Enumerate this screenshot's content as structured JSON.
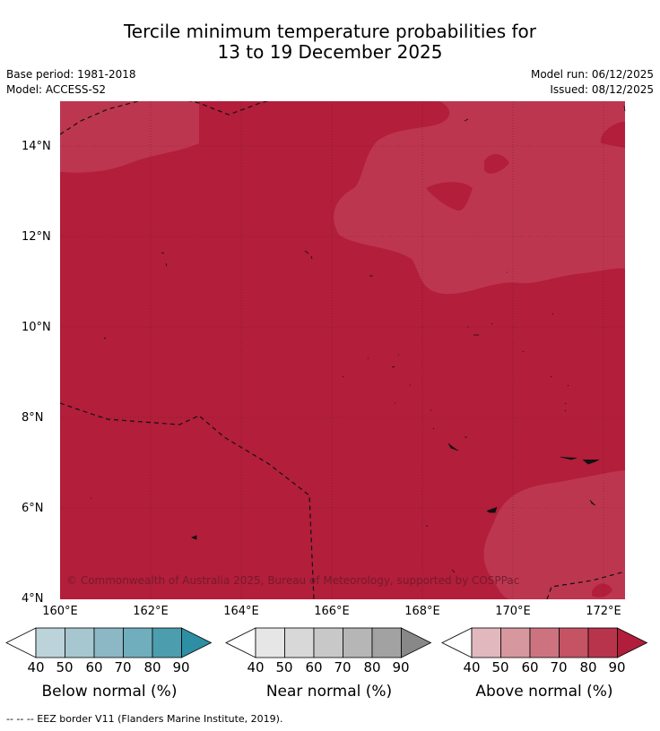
{
  "title": {
    "line1": "Tercile minimum temperature probabilities for",
    "line2": "13 to 19 December 2025"
  },
  "meta": {
    "base_period": "Base period: 1981-2018",
    "model": "Model: ACCESS-S2",
    "model_run": "Model run: 06/12/2025",
    "issued": "Issued: 08/12/2025"
  },
  "map": {
    "lat_ticks": [
      "14°N",
      "12°N",
      "10°N",
      "8°N",
      "6°N",
      "4°N"
    ],
    "lon_ticks": [
      "160°E",
      "162°E",
      "164°E",
      "166°E",
      "168°E",
      "170°E",
      "172°E"
    ],
    "credit": "© Commonwealth of Australia 2025, Bureau of Meteorology, supported by COSPPac",
    "fill_colors": {
      "dark": "#b31e3a",
      "light": "#bd3650"
    }
  },
  "colorbars": [
    {
      "label": "Below normal (%)",
      "ticks": [
        "40",
        "50",
        "60",
        "70",
        "80",
        "90"
      ],
      "colors": [
        "#ffffff",
        "#bcd3da",
        "#a6c7cf",
        "#8bb8c4",
        "#70aebd",
        "#4c9dae",
        "#2e8ea3"
      ]
    },
    {
      "label": "Near normal (%)",
      "ticks": [
        "40",
        "50",
        "60",
        "70",
        "80",
        "90"
      ],
      "colors": [
        "#ffffff",
        "#e6e6e6",
        "#d8d8d8",
        "#c8c8c8",
        "#b6b6b6",
        "#a2a2a2",
        "#888888"
      ]
    },
    {
      "label": "Above normal (%)",
      "ticks": [
        "40",
        "50",
        "60",
        "70",
        "80",
        "90"
      ],
      "colors": [
        "#ffffff",
        "#e2b8bf",
        "#d7979f",
        "#cd737f",
        "#c45363",
        "#b8344c",
        "#b01e3c"
      ]
    }
  ],
  "footer": "-- -- -- EEZ border V11 (Flanders Marine Institute, 2019)."
}
